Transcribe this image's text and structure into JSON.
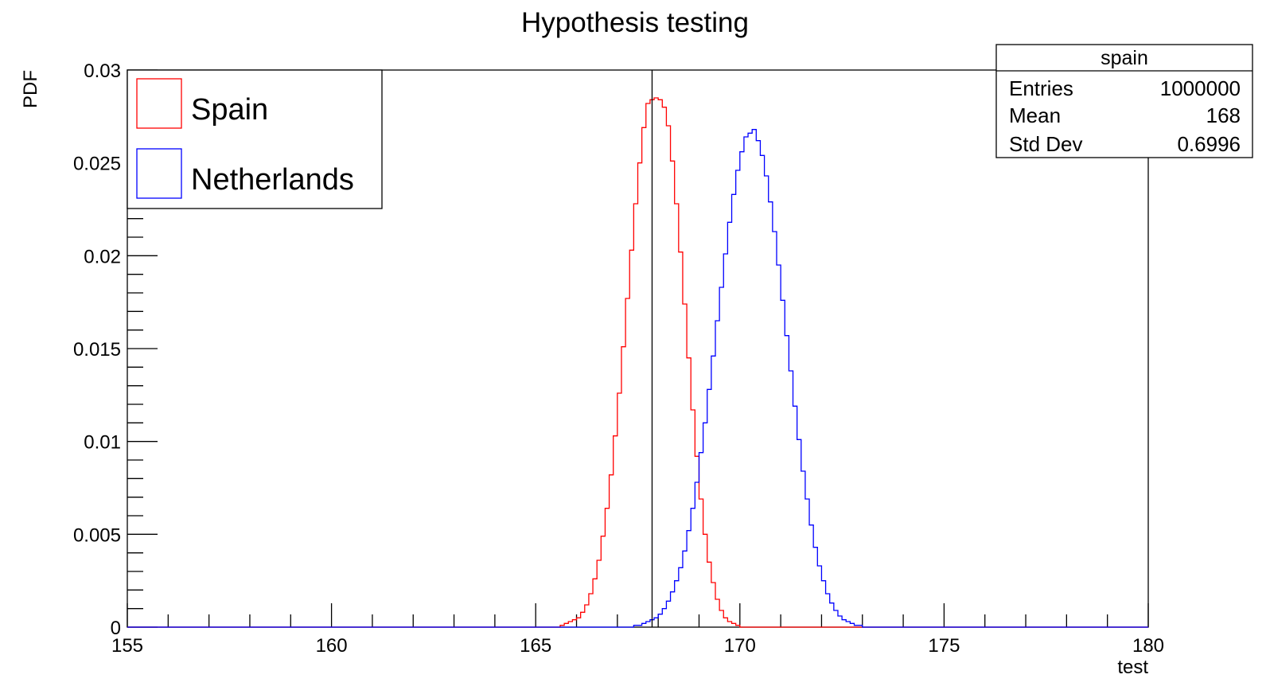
{
  "chart_data": {
    "type": "histogram",
    "title": "Hypothesis testing",
    "xlabel": "test",
    "ylabel": "PDF",
    "xlim": [
      155,
      180
    ],
    "ylim": [
      0,
      0.03
    ],
    "x_ticks": [
      155,
      160,
      165,
      170,
      175,
      180
    ],
    "x_tick_labels": [
      "155",
      "160",
      "165",
      "170",
      "175",
      "180"
    ],
    "y_ticks": [
      0,
      0.005,
      0.01,
      0.015,
      0.02,
      0.025,
      0.03
    ],
    "y_tick_labels": [
      "0",
      "0.005",
      "0.01",
      "0.015",
      "0.02",
      "0.025",
      "0.03"
    ],
    "bin_width": 0.1,
    "cut_line_x": 167.85,
    "series": [
      {
        "name": "Spain",
        "color": "#ff0000",
        "x": [
          165.5,
          165.6,
          165.7,
          165.8,
          165.9,
          166.0,
          166.1,
          166.2,
          166.3,
          166.4,
          166.5,
          166.6,
          166.7,
          166.8,
          166.9,
          167.0,
          167.1,
          167.2,
          167.3,
          167.4,
          167.5,
          167.6,
          167.7,
          167.8,
          167.9,
          168.0,
          168.1,
          168.2,
          168.3,
          168.4,
          168.5,
          168.6,
          168.7,
          168.8,
          168.9,
          169.0,
          169.1,
          169.2,
          169.3,
          169.4,
          169.5,
          169.6,
          169.7,
          169.8,
          169.9,
          170.0,
          170.1,
          170.2,
          170.3
        ],
        "values": [
          0.0,
          0.0001,
          0.0002,
          0.0003,
          0.0004,
          0.0005,
          0.0008,
          0.0012,
          0.0018,
          0.0026,
          0.0036,
          0.0049,
          0.0064,
          0.0082,
          0.0103,
          0.0126,
          0.0151,
          0.0177,
          0.0203,
          0.0228,
          0.025,
          0.0269,
          0.0282,
          0.0284,
          0.0285,
          0.0284,
          0.028,
          0.027,
          0.0251,
          0.0228,
          0.0202,
          0.0174,
          0.0145,
          0.0117,
          0.0092,
          0.0069,
          0.005,
          0.0035,
          0.0024,
          0.0015,
          0.0009,
          0.0005,
          0.0003,
          0.0002,
          0.0001,
          0.0,
          0.0,
          0.0,
          0.0
        ]
      },
      {
        "name": "Netherlands",
        "color": "#0000ff",
        "x": [
          167.3,
          167.4,
          167.5,
          167.6,
          167.7,
          167.8,
          167.9,
          168.0,
          168.1,
          168.2,
          168.3,
          168.4,
          168.5,
          168.6,
          168.7,
          168.8,
          168.9,
          169.0,
          169.1,
          169.2,
          169.3,
          169.4,
          169.5,
          169.6,
          169.7,
          169.8,
          169.9,
          170.0,
          170.1,
          170.2,
          170.3,
          170.4,
          170.5,
          170.6,
          170.7,
          170.8,
          170.9,
          171.0,
          171.1,
          171.2,
          171.3,
          171.4,
          171.5,
          171.6,
          171.7,
          171.8,
          171.9,
          172.0,
          172.1,
          172.2,
          172.3,
          172.4,
          172.5,
          172.6,
          172.7,
          172.8,
          172.9,
          173.0,
          173.1
        ],
        "values": [
          0.0,
          0.0001,
          0.0001,
          0.0002,
          0.0003,
          0.0004,
          0.0005,
          0.0007,
          0.001,
          0.0014,
          0.0019,
          0.0025,
          0.0032,
          0.0041,
          0.0052,
          0.0064,
          0.0078,
          0.0094,
          0.011,
          0.0128,
          0.0146,
          0.0165,
          0.0183,
          0.0201,
          0.0218,
          0.0233,
          0.0246,
          0.0256,
          0.0264,
          0.0266,
          0.0268,
          0.0262,
          0.0254,
          0.0243,
          0.0229,
          0.0213,
          0.0195,
          0.0176,
          0.0157,
          0.0138,
          0.0119,
          0.0101,
          0.0084,
          0.0069,
          0.0055,
          0.0043,
          0.0033,
          0.0025,
          0.0018,
          0.0013,
          0.0009,
          0.0006,
          0.0004,
          0.0003,
          0.0002,
          0.0001,
          0.0001,
          0.0,
          0.0
        ]
      }
    ],
    "legend": {
      "placement": "top-left",
      "entries": [
        {
          "label": "Spain",
          "color": "#ff0000"
        },
        {
          "label": "Netherlands",
          "color": "#0000ff"
        }
      ]
    },
    "stats_box": {
      "placement": "top-right",
      "title": "spain",
      "rows": [
        {
          "label": "Entries",
          "value": "1000000"
        },
        {
          "label": "Mean",
          "value": "168"
        },
        {
          "label": "Std Dev",
          "value": "0.6996"
        }
      ]
    }
  }
}
